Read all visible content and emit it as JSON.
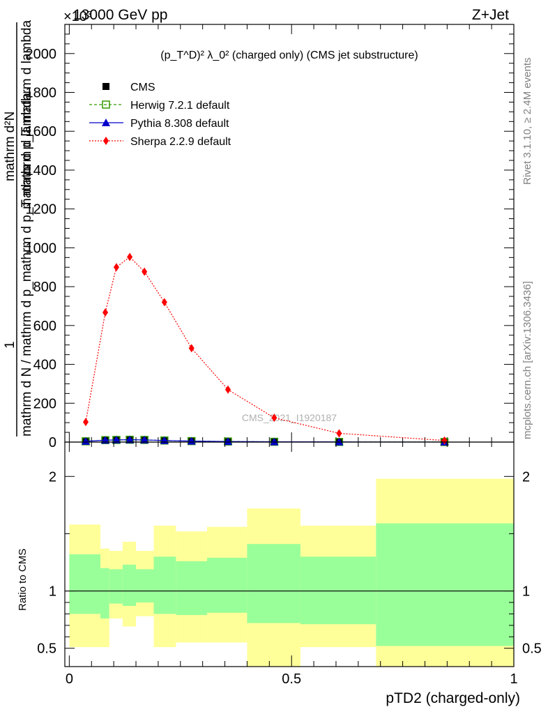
{
  "header": {
    "energy": "13000 GeV pp",
    "process": "Z+Jet",
    "exponent": "×10³"
  },
  "side": {
    "rivet": "Rivet 3.1.10, ≥ 2.4M events",
    "mcplots": "mcplots.cern.ch [arXiv:1306.3436]"
  },
  "watermark": "CMS_2021_I1920187",
  "main_ylabel": {
    "numerator": "1",
    "denominator": "mathrm d N / mathrm d p_mathrm d p_T mathrm d lambda",
    "top": "mathrm d²N",
    "top2": "mathrm d p_T mathrm d lambda"
  },
  "ratio_ylabel": "Ratio to CMS",
  "xlabel": "pTD2 (charged-only)",
  "colors": {
    "band_inner": "#99ff99",
    "band_outer": "#ffff99",
    "herwig": "#339900",
    "pythia": "#0000cc",
    "sherpa": "#ff0000",
    "cms": "#000000"
  },
  "chart_data": [
    {
      "type": "line",
      "title": "(p_T^D)² λ_0² (charged only) (CMS jet substructure)",
      "ylim": [
        0,
        2150
      ],
      "xlim": [
        -0.01,
        1.0
      ],
      "yticks": [
        0,
        200,
        400,
        600,
        800,
        1000,
        1200,
        1400,
        1600,
        1800,
        2000
      ],
      "ytick_labels": [
        "0",
        "200",
        "400",
        "600",
        "800",
        "1000",
        "1200",
        "1400",
        "1600",
        "1800",
        "2000"
      ],
      "legend_position": "top-left",
      "x": [
        0.037,
        0.081,
        0.106,
        0.136,
        0.169,
        0.214,
        0.275,
        0.357,
        0.461,
        0.607,
        0.844
      ],
      "series": [
        {
          "name": "CMS",
          "marker": "square",
          "values": [
            4,
            10,
            11,
            12,
            11,
            8,
            5,
            3,
            1.5,
            0.8,
            0.3
          ]
        },
        {
          "name": "Herwig 7.2.1 default",
          "marker": "open-square",
          "values": [
            4,
            10,
            11,
            12,
            11,
            8,
            5,
            3,
            1.5,
            0.8,
            0.3
          ]
        },
        {
          "name": "Pythia 8.308 default",
          "marker": "triangle",
          "values": [
            4,
            10,
            11,
            12,
            11,
            8,
            5,
            3,
            1.5,
            0.8,
            0.3
          ]
        },
        {
          "name": "Sherpa 2.2.9 default",
          "marker": "diamond",
          "values": [
            103,
            667,
            900,
            953,
            877,
            720,
            483,
            270,
            125,
            45,
            8
          ]
        }
      ]
    },
    {
      "type": "area",
      "ylabel": "Ratio to CMS",
      "xlabel": "pTD2 (charged-only)",
      "xlim": [
        -0.01,
        1.0
      ],
      "ylim": [
        0.34,
        2.3
      ],
      "xticks": [
        0,
        0.5,
        1
      ],
      "xtick_labels": [
        "0",
        "0.5",
        "1"
      ],
      "yticks": [
        0.5,
        1,
        2
      ],
      "ytick_labels": [
        "0.5",
        "1",
        "2"
      ],
      "bins": [
        {
          "x0": 0.0,
          "x1": 0.07,
          "inner": [
            0.8,
            1.32
          ],
          "outer": [
            0.51,
            1.58
          ]
        },
        {
          "x0": 0.07,
          "x1": 0.09,
          "inner": [
            0.76,
            1.2
          ],
          "outer": [
            0.51,
            1.37
          ]
        },
        {
          "x0": 0.09,
          "x1": 0.12,
          "inner": [
            0.89,
            1.19
          ],
          "outer": [
            0.76,
            1.35
          ]
        },
        {
          "x0": 0.12,
          "x1": 0.15,
          "inner": [
            0.87,
            1.23
          ],
          "outer": [
            0.69,
            1.43
          ]
        },
        {
          "x0": 0.15,
          "x1": 0.19,
          "inner": [
            0.9,
            1.19
          ],
          "outer": [
            0.78,
            1.35
          ]
        },
        {
          "x0": 0.19,
          "x1": 0.24,
          "inner": [
            0.8,
            1.3
          ],
          "outer": [
            0.51,
            1.57
          ]
        },
        {
          "x0": 0.24,
          "x1": 0.31,
          "inner": [
            0.79,
            1.26
          ],
          "outer": [
            0.55,
            1.52
          ]
        },
        {
          "x0": 0.31,
          "x1": 0.4,
          "inner": [
            0.81,
            1.29
          ],
          "outer": [
            0.55,
            1.56
          ]
        },
        {
          "x0": 0.4,
          "x1": 0.52,
          "inner": [
            0.72,
            1.41
          ],
          "outer": [
            0.34,
            1.72
          ]
        },
        {
          "x0": 0.52,
          "x1": 0.69,
          "inner": [
            0.71,
            1.3
          ],
          "outer": [
            0.51,
            1.57
          ]
        },
        {
          "x0": 0.69,
          "x1": 1.0,
          "inner": [
            0.52,
            1.59
          ],
          "outer": [
            0.34,
            1.98
          ]
        }
      ]
    }
  ]
}
